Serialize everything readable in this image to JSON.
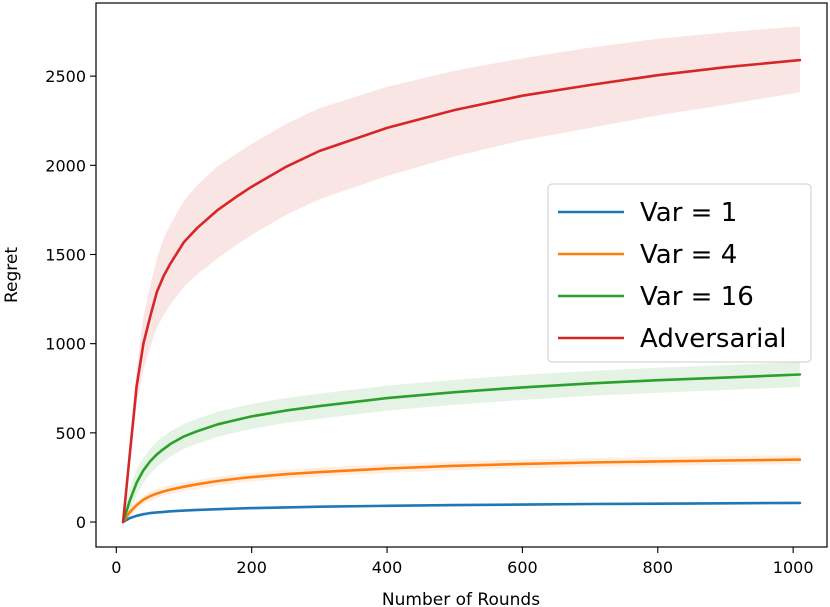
{
  "chart_data": {
    "type": "line",
    "title": "",
    "xlabel": "Number of Rounds",
    "ylabel": "Regret",
    "xlim": [
      -30,
      1050
    ],
    "ylim": [
      -140,
      2910
    ],
    "xticks": [
      0,
      200,
      400,
      600,
      800,
      1000
    ],
    "yticks": [
      0,
      500,
      1000,
      1500,
      2000,
      2500
    ],
    "grid": false,
    "legend_position": "center-right",
    "x": [
      10,
      20,
      30,
      40,
      50,
      60,
      70,
      80,
      100,
      120,
      150,
      180,
      200,
      250,
      300,
      400,
      500,
      600,
      700,
      800,
      900,
      1010
    ],
    "series": [
      {
        "name": "Var = 1",
        "color": "#1f77b4",
        "values": [
          0,
          22,
          35,
          44,
          50,
          54,
          57,
          60,
          64,
          68,
          72,
          76,
          78,
          82,
          86,
          91,
          95,
          98,
          101,
          103,
          105,
          107
        ],
        "band": 6
      },
      {
        "name": "Var = 4",
        "color": "#ff7f0e",
        "values": [
          0,
          55,
          95,
          125,
          145,
          160,
          172,
          182,
          198,
          212,
          230,
          244,
          252,
          268,
          280,
          300,
          315,
          326,
          334,
          340,
          345,
          350
        ],
        "band": 25
      },
      {
        "name": "Var = 16",
        "color": "#2ca02c",
        "values": [
          0,
          120,
          220,
          290,
          340,
          380,
          410,
          438,
          480,
          510,
          548,
          575,
          592,
          625,
          650,
          695,
          728,
          755,
          777,
          795,
          810,
          827
        ],
        "band": 70
      },
      {
        "name": "Adversarial",
        "color": "#d62728",
        "values": [
          0,
          380,
          760,
          1000,
          1150,
          1290,
          1380,
          1450,
          1570,
          1650,
          1750,
          1830,
          1880,
          1990,
          2080,
          2210,
          2310,
          2390,
          2450,
          2505,
          2550,
          2590
        ],
        "band_lower": [
          0,
          330,
          660,
          850,
          980,
          1090,
          1160,
          1220,
          1320,
          1390,
          1480,
          1560,
          1610,
          1720,
          1810,
          1940,
          2050,
          2140,
          2210,
          2280,
          2340,
          2410
        ],
        "band_upper": [
          0,
          430,
          860,
          1150,
          1320,
          1480,
          1590,
          1670,
          1800,
          1890,
          1995,
          2070,
          2120,
          2230,
          2320,
          2440,
          2530,
          2600,
          2660,
          2710,
          2745,
          2780
        ]
      }
    ]
  }
}
